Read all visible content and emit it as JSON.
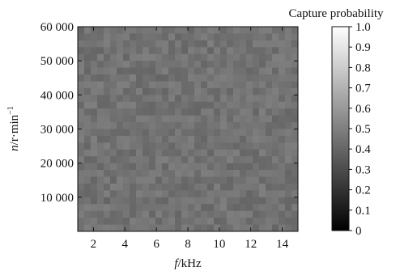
{
  "chart_data": {
    "type": "heatmap",
    "title": "",
    "xlabel": "f/kHz",
    "xlabel_italic": "f",
    "xlabel_unit": "/kHz",
    "ylabel": "n/r·min⁻¹",
    "ylabel_italic": "n",
    "ylabel_unit": "/r·min",
    "ylabel_sup": "−1",
    "xlim": [
      1,
      15
    ],
    "ylim": [
      0,
      60000
    ],
    "x_ticks": [
      2,
      4,
      6,
      8,
      10,
      12,
      14
    ],
    "x_tick_labels": [
      "2",
      "4",
      "6",
      "8",
      "10",
      "12",
      "14"
    ],
    "y_ticks": [
      10000,
      20000,
      30000,
      40000,
      50000,
      60000
    ],
    "y_tick_labels": [
      "10 000",
      "20 000",
      "30 000",
      "40 000",
      "50 000",
      "60 000"
    ],
    "value_range": [
      0.16,
      0.3
    ],
    "typical_value": 0.22,
    "colorscale": "gray",
    "colorbar": {
      "title": "Capture probability",
      "min": 0,
      "max": 1.0,
      "ticks": [
        0,
        0.1,
        0.2,
        0.3,
        0.4,
        0.5,
        0.6,
        0.7,
        0.8,
        0.9,
        1.0
      ],
      "tick_labels": [
        "0",
        "0.1",
        "0.2",
        "0.3",
        "0.4",
        "0.5",
        "0.6",
        "0.7",
        "0.8",
        "0.9",
        "1.0"
      ]
    }
  }
}
